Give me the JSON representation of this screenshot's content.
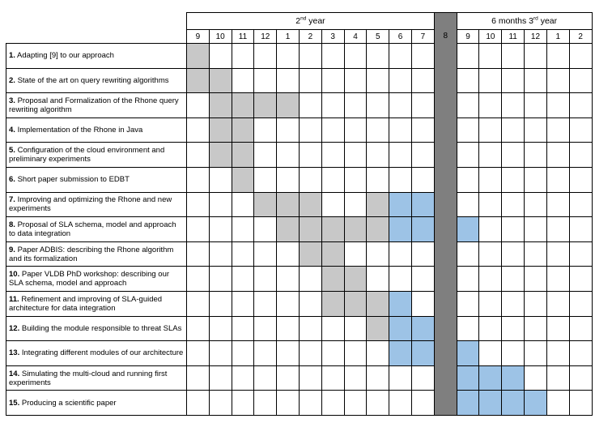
{
  "periods": [
    {
      "label": "2",
      "sup": "nd",
      "rest": " year"
    },
    {
      "label": "6 months 3",
      "sup": "rd",
      "rest": " year"
    }
  ],
  "months": [
    "9",
    "10",
    "11",
    "12",
    "1",
    "2",
    "3",
    "4",
    "5",
    "6",
    "7",
    "8",
    "9",
    "10",
    "11",
    "12",
    "1",
    "2"
  ],
  "colors": {
    "divider": "#7f7f7f",
    "gray": "#c8c8c8",
    "blue": "#9dc3e6"
  },
  "tasks": [
    {
      "num": "1.",
      "text": " Adapting [9] to our approach",
      "cells": [
        "g",
        "",
        "",
        "",
        "",
        "",
        "",
        "",
        "",
        "",
        "",
        "d",
        "",
        "",
        "",
        "",
        "",
        ""
      ]
    },
    {
      "num": "2.",
      "text": " State of the art on query rewriting algorithms",
      "cells": [
        "g",
        "g",
        "",
        "",
        "",
        "",
        "",
        "",
        "",
        "",
        "",
        "d",
        "",
        "",
        "",
        "",
        "",
        ""
      ]
    },
    {
      "num": "3.",
      "text": " Proposal and Formalization of the Rhone query rewriting algorithm",
      "cells": [
        "",
        "g",
        "g",
        "g",
        "g",
        "",
        "",
        "",
        "",
        "",
        "",
        "d",
        "",
        "",
        "",
        "",
        "",
        ""
      ]
    },
    {
      "num": "4.",
      "text": " Implementation of the Rhone in Java",
      "cells": [
        "",
        "g",
        "g",
        "",
        "",
        "",
        "",
        "",
        "",
        "",
        "",
        "d",
        "",
        "",
        "",
        "",
        "",
        ""
      ]
    },
    {
      "num": "5.",
      "text": " Configuration of the cloud environment and preliminary experiments",
      "cells": [
        "",
        "g",
        "g",
        "",
        "",
        "",
        "",
        "",
        "",
        "",
        "",
        "d",
        "",
        "",
        "",
        "",
        "",
        ""
      ]
    },
    {
      "num": "6.",
      "text": " Short paper submission to EDBT",
      "cells": [
        "",
        "",
        "g",
        "",
        "",
        "",
        "",
        "",
        "",
        "",
        "",
        "d",
        "",
        "",
        "",
        "",
        "",
        ""
      ]
    },
    {
      "num": "7.",
      "text": " Improving and optimizing the Rhone and new experiments",
      "cells": [
        "",
        "",
        "",
        "g",
        "g",
        "g",
        "",
        "",
        "g",
        "b",
        "b",
        "d",
        "",
        "",
        "",
        "",
        "",
        ""
      ]
    },
    {
      "num": "8.",
      "text": " Proposal of SLA schema, model and approach to data integration",
      "cells": [
        "",
        "",
        "",
        "",
        "g",
        "g",
        "g",
        "g",
        "g",
        "b",
        "b",
        "d",
        "b",
        "",
        "",
        "",
        "",
        ""
      ]
    },
    {
      "num": "9.",
      "text": " Paper ADBIS: describing the Rhone algorithm and its formalization",
      "cells": [
        "",
        "",
        "",
        "",
        "",
        "g",
        "g",
        "",
        "",
        "",
        "",
        "d",
        "",
        "",
        "",
        "",
        "",
        ""
      ]
    },
    {
      "num": "10.",
      "text": " Paper VLDB PhD workshop: describing our SLA schema, model and approach",
      "cells": [
        "",
        "",
        "",
        "",
        "",
        "",
        "g",
        "g",
        "",
        "",
        "",
        "d",
        "",
        "",
        "",
        "",
        "",
        ""
      ]
    },
    {
      "num": "11.",
      "text": " Refinement and improving of SLA-guided architecture for data integration",
      "cells": [
        "",
        "",
        "",
        "",
        "",
        "",
        "g",
        "g",
        "g",
        "b",
        "",
        "d",
        "",
        "",
        "",
        "",
        "",
        ""
      ]
    },
    {
      "num": "12.",
      "text": " Building the module responsible to threat SLAs",
      "cells": [
        "",
        "",
        "",
        "",
        "",
        "",
        "",
        "",
        "g",
        "b",
        "b",
        "d",
        "",
        "",
        "",
        "",
        "",
        ""
      ]
    },
    {
      "num": "13.",
      "text": " Integrating different modules of our architecture",
      "cells": [
        "",
        "",
        "",
        "",
        "",
        "",
        "",
        "",
        "",
        "b",
        "b",
        "d",
        "b",
        "",
        "",
        "",
        "",
        ""
      ]
    },
    {
      "num": "14.",
      "text": " Simulating the multi-cloud and running first experiments",
      "cells": [
        "",
        "",
        "",
        "",
        "",
        "",
        "",
        "",
        "",
        "",
        "",
        "d",
        "b",
        "b",
        "b",
        "",
        "",
        ""
      ]
    },
    {
      "num": "15.",
      "text": " Producing a scientific paper",
      "cells": [
        "",
        "",
        "",
        "",
        "",
        "",
        "",
        "",
        "",
        "",
        "",
        "d",
        "b",
        "b",
        "b",
        "b",
        "",
        ""
      ]
    }
  ]
}
